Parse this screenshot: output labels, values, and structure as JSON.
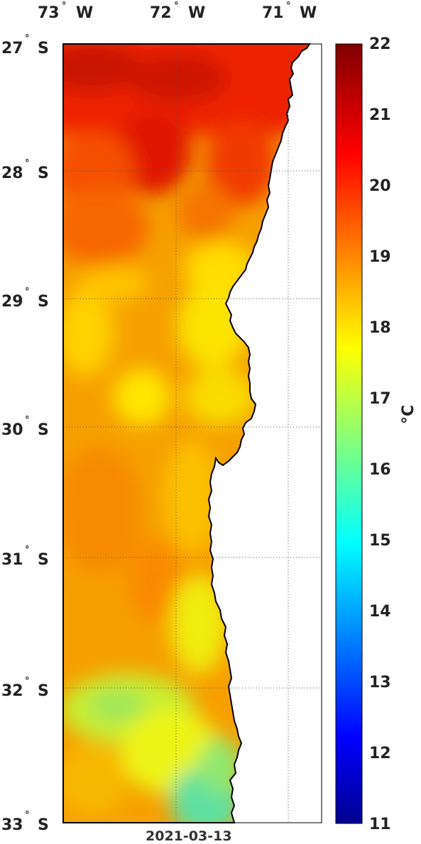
{
  "map": {
    "lon_labels": [
      {
        "deg": "73",
        "dir": "W"
      },
      {
        "deg": "72",
        "dir": "W"
      },
      {
        "deg": "71",
        "dir": "W"
      }
    ],
    "lat_labels": [
      {
        "deg": "27",
        "dir": "S"
      },
      {
        "deg": "28",
        "dir": "S"
      },
      {
        "deg": "29",
        "dir": "S"
      },
      {
        "deg": "30",
        "dir": "S"
      },
      {
        "deg": "31",
        "dir": "S"
      },
      {
        "deg": "32",
        "dir": "S"
      },
      {
        "deg": "33",
        "dir": "S"
      }
    ],
    "degree_symbol": "°",
    "date": "2021-03-13",
    "land_color": "#ffffff",
    "coast_color": "#000000"
  },
  "colorbar": {
    "ticks": [
      "22",
      "21",
      "20",
      "19",
      "18",
      "17",
      "16",
      "15",
      "14",
      "13",
      "12",
      "11"
    ],
    "unit": "°C",
    "colormap": "jet",
    "min": 11,
    "max": 22
  }
}
